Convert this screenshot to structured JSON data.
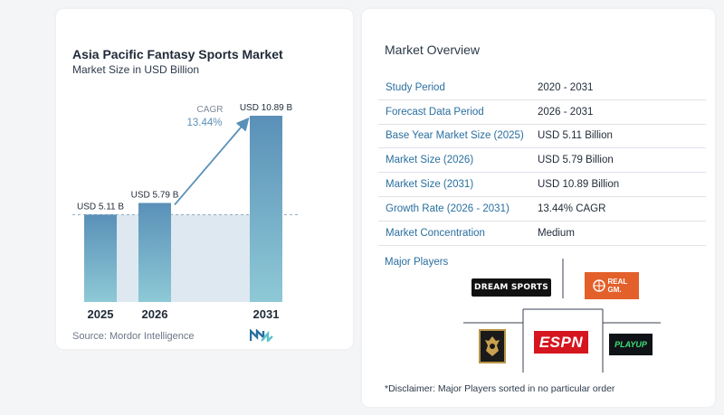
{
  "chart_data": {
    "type": "bar",
    "title": "Asia Pacific Fantasy Sports Market",
    "subtitle": "Market Size in USD Billion",
    "categories": [
      "2025",
      "2026",
      "2031"
    ],
    "values": [
      5.11,
      5.79,
      10.89
    ],
    "value_labels": [
      "USD 5.11 B",
      "USD 5.79 B",
      "USD 10.89 B"
    ],
    "cagr_label": "CAGR",
    "cagr_value": "13.44%",
    "colors": {
      "bar_top": "#5a90b8",
      "bar_bottom": "#8ec9d6",
      "arrow": "#5a90b8",
      "band": "#dde8f1"
    }
  },
  "source": "Source:  Mordor Intelligence",
  "overview": {
    "title": "Market Overview",
    "rows": [
      {
        "key": "Study Period",
        "value": "2020 - 2031"
      },
      {
        "key": "Forecast Data Period",
        "value": "2026 - 2031"
      },
      {
        "key": "Base Year Market Size (2025)",
        "value": "USD 5.11 Billion"
      },
      {
        "key": "Market Size (2026)",
        "value": "USD 5.79 Billion"
      },
      {
        "key": "Market Size (2031)",
        "value": "USD 10.89 Billion"
      },
      {
        "key": "Growth Rate (2026 - 2031)",
        "value": "13.44% CAGR"
      },
      {
        "key": "Market Concentration",
        "value": "Medium"
      }
    ]
  },
  "players": {
    "title": "Major Players",
    "logos": {
      "dream": "DREAM SPORTS",
      "real": "REAL GM.",
      "espn": "ESPN",
      "playup": "PLAYUP"
    },
    "disclaimer": "*Disclaimer: Major Players sorted in no particular order"
  }
}
